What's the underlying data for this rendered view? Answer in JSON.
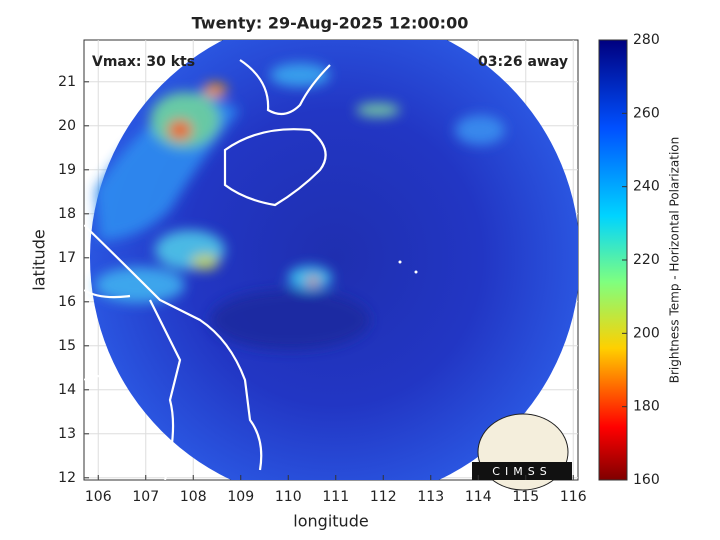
{
  "chart_data": {
    "type": "map",
    "title": "Twenty: 29-Aug-2025 12:00:00",
    "annotations": [
      "Vmax: 30 kts",
      "03:26 away"
    ],
    "x_label": "longitude",
    "y_label": "latitude",
    "xlim": [
      105.7,
      116.1
    ],
    "xticks": [
      106,
      107,
      108,
      109,
      110,
      111,
      112,
      113,
      114,
      115,
      116
    ],
    "ylim": [
      11.95,
      21.95
    ],
    "yticks": [
      12,
      13,
      14,
      15,
      16,
      17,
      18,
      19,
      20,
      21
    ],
    "grid": true,
    "colorbar": {
      "label": "Brightness Temp - Horizontal Polarization",
      "lim": [
        160,
        280
      ],
      "ticks": [
        160,
        180,
        200,
        220,
        240,
        260,
        280
      ]
    },
    "logo": "CIMSS"
  }
}
